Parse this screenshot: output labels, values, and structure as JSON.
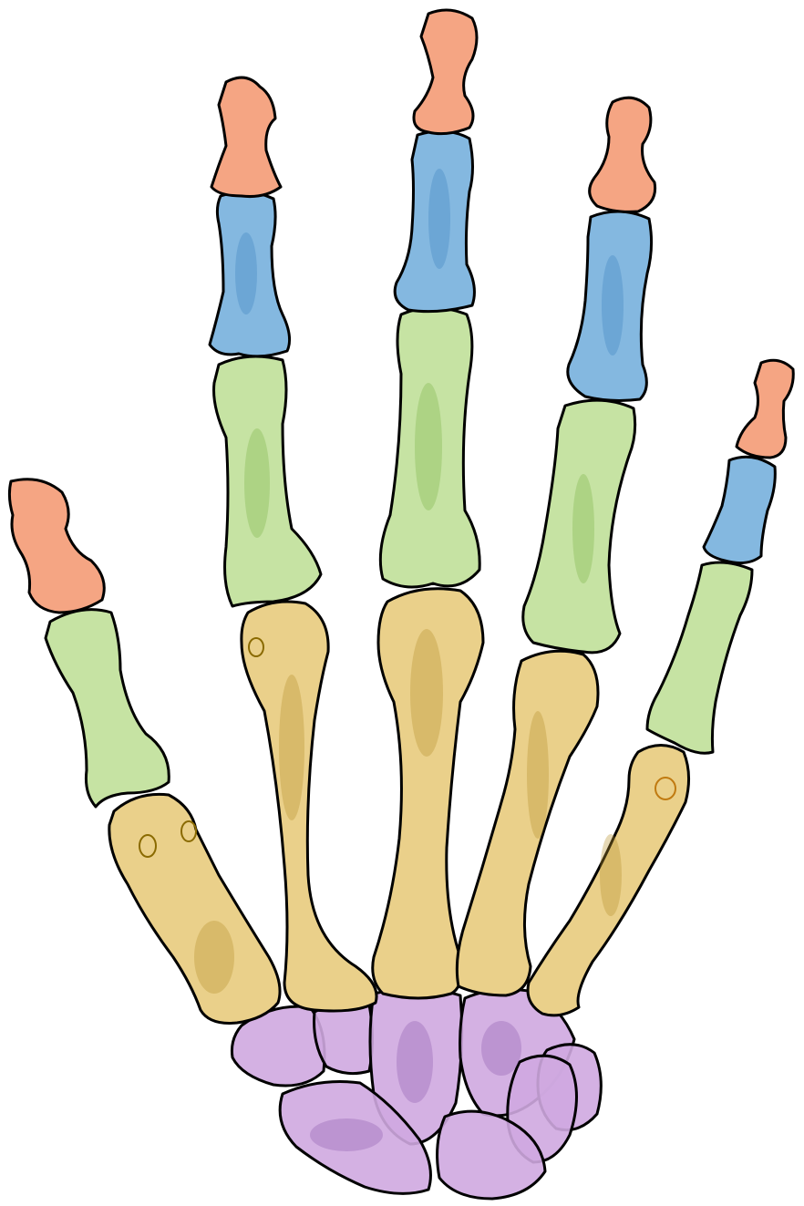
{
  "colors": {
    "distal_phalanges": "#f5a583",
    "middle_phalanges": "#84b8e0",
    "proximal_phalanges": "#c6e3a3",
    "metacarpals": "#ead08a",
    "carpals": "#cfa8e0",
    "outline": "#000000"
  },
  "digits": [
    "thumb",
    "index",
    "middle",
    "ring",
    "little"
  ],
  "bone_groups": [
    "distal-phalanx",
    "middle-phalanx",
    "proximal-phalanx",
    "metacarpal",
    "carpal"
  ]
}
